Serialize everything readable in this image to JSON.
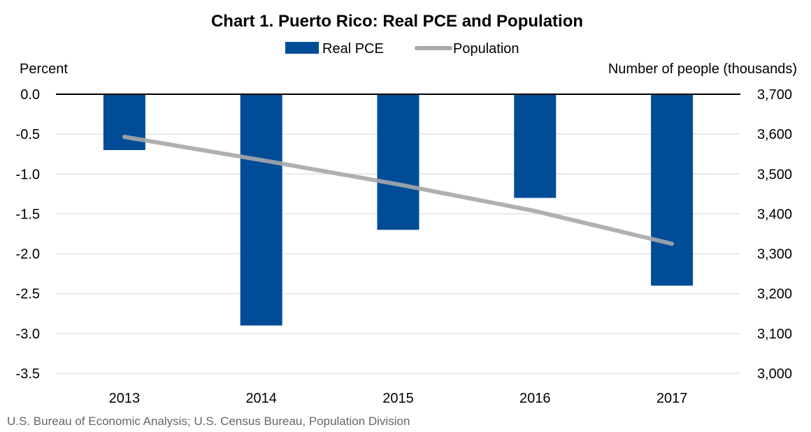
{
  "chart_data": {
    "type": "bar+line",
    "title": "Chart 1. Puerto Rico: Real PCE and Population",
    "categories": [
      "2013",
      "2014",
      "2015",
      "2016",
      "2017"
    ],
    "series": [
      {
        "name": "Real PCE",
        "type": "bar",
        "axis": "left",
        "values": [
          -0.7,
          -2.9,
          -1.7,
          -1.3,
          -2.4
        ],
        "color": "#004C97"
      },
      {
        "name": "Population",
        "type": "line",
        "axis": "right",
        "values": [
          3593,
          3535,
          3474,
          3407,
          3325
        ],
        "color": "#A5A9AA"
      }
    ],
    "ylabel_left": "Percent",
    "ylabel_right": "Number of people (thousands)",
    "ylim_left": [
      -3.5,
      0.0
    ],
    "yticks_left": [
      "0.0",
      "-0.5",
      "-1.0",
      "-1.5",
      "-2.0",
      "-2.5",
      "-3.0",
      "-3.5"
    ],
    "ylim_right": [
      3000,
      3700
    ],
    "yticks_right": [
      "3,700",
      "3,600",
      "3,500",
      "3,400",
      "3,300",
      "3,200",
      "3,100",
      "3,000"
    ],
    "grid": true,
    "legend_position": "top"
  },
  "source": "U.S. Bureau of Economic Analysis; U.S. Census Bureau, Population Division"
}
